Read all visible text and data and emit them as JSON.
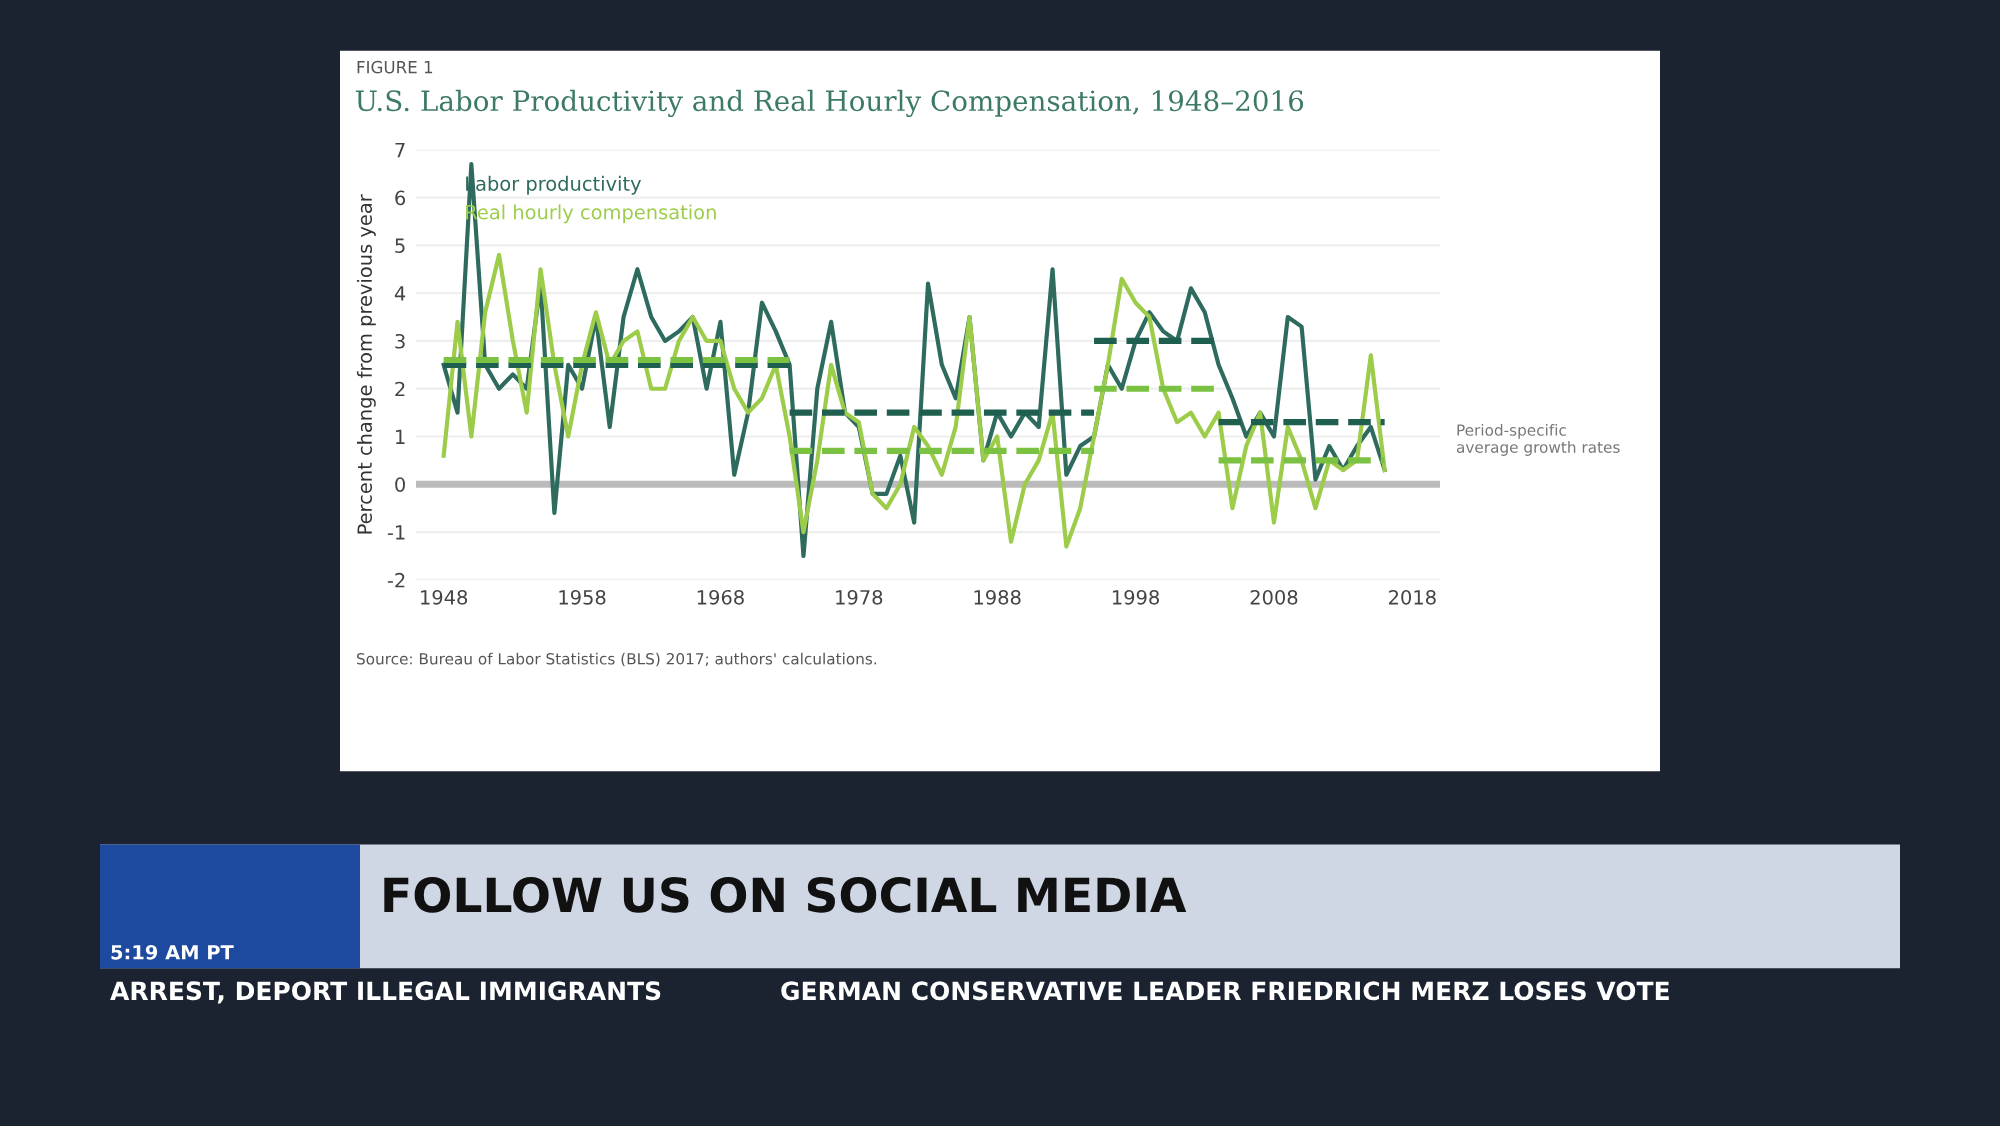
{
  "chart_data": {
    "type": "line",
    "title": "U.S. Labor Productivity and Real Hourly Compensation, 1948–2016",
    "ylabel": "Percent change from previous year",
    "x": [
      1948,
      1949,
      1950,
      1951,
      1952,
      1953,
      1954,
      1955,
      1956,
      1957,
      1958,
      1959,
      1960,
      1961,
      1962,
      1963,
      1964,
      1965,
      1966,
      1967,
      1968,
      1969,
      1970,
      1971,
      1972,
      1973,
      1974,
      1975,
      1976,
      1977,
      1978,
      1979,
      1980,
      1981,
      1982,
      1983,
      1984,
      1985,
      1986,
      1987,
      1988,
      1989,
      1990,
      1991,
      1992,
      1993,
      1994,
      1995,
      1996,
      1997,
      1998,
      1999,
      2000,
      2001,
      2002,
      2003,
      2004,
      2005,
      2006,
      2007,
      2008,
      2009,
      2010,
      2011,
      2012,
      2013,
      2014,
      2015,
      2016
    ],
    "series": [
      {
        "name": "Labor productivity",
        "color": "#2e6b5e",
        "values": [
          2.5,
          1.5,
          6.7,
          2.5,
          2.0,
          2.3,
          2.0,
          4.2,
          -0.6,
          2.5,
          2.0,
          3.5,
          1.2,
          3.5,
          4.5,
          3.5,
          3.0,
          3.2,
          3.5,
          2.0,
          3.4,
          0.2,
          1.5,
          3.8,
          3.2,
          2.5,
          -1.5,
          2.0,
          3.4,
          1.5,
          1.2,
          -0.2,
          -0.2,
          0.6,
          -0.8,
          4.2,
          2.5,
          1.8,
          3.5,
          0.5,
          1.5,
          1.0,
          1.5,
          1.2,
          4.5,
          0.2,
          0.8,
          1.0,
          2.5,
          2.0,
          3.0,
          3.6,
          3.2,
          3.0,
          4.1,
          3.6,
          2.5,
          1.8,
          1.0,
          1.5,
          1.0,
          3.5,
          3.3,
          0.1,
          0.8,
          0.3,
          0.8,
          1.2,
          0.3
        ]
      },
      {
        "name": "Real hourly compensation",
        "color": "#9ccc4a",
        "values": [
          0.6,
          3.4,
          1.0,
          3.6,
          4.8,
          3.0,
          1.5,
          4.5,
          2.5,
          1.0,
          2.5,
          3.6,
          2.5,
          3.0,
          3.2,
          2.0,
          2.0,
          3.0,
          3.5,
          3.0,
          3.0,
          2.0,
          1.5,
          1.8,
          2.5,
          1.0,
          -1.0,
          0.5,
          2.5,
          1.5,
          1.3,
          -0.2,
          -0.5,
          0.0,
          1.2,
          0.8,
          0.2,
          1.2,
          3.5,
          0.5,
          1.0,
          -1.2,
          0.0,
          0.5,
          1.5,
          -1.3,
          -0.5,
          1.0,
          2.5,
          4.3,
          3.8,
          3.5,
          2.0,
          1.3,
          1.5,
          1.0,
          1.5,
          -0.5,
          0.8,
          1.5,
          -0.8,
          1.2,
          0.5,
          -0.5,
          0.5,
          0.3,
          0.5,
          2.7,
          0.3
        ]
      },
      {
        "color": "#1f5f4f",
        "line_style": "dashed",
        "x": [
          1948,
          1973
        ],
        "values": [
          2.5,
          2.5
        ]
      },
      {
        "color": "#1f5f4f",
        "line_style": "dashed",
        "x": [
          1973,
          1995
        ],
        "values": [
          1.5,
          1.5
        ]
      },
      {
        "color": "#1f5f4f",
        "line_style": "dashed",
        "x": [
          1995,
          2004
        ],
        "values": [
          3.0,
          3.0
        ]
      },
      {
        "color": "#1f5f4f",
        "line_style": "dashed",
        "x": [
          2004,
          2016
        ],
        "values": [
          1.3,
          1.3
        ]
      },
      {
        "color": "#7cc242",
        "line_style": "dashed",
        "x": [
          1948,
          1973
        ],
        "values": [
          2.6,
          2.6
        ]
      },
      {
        "color": "#7cc242",
        "line_style": "dashed",
        "x": [
          1973,
          1995
        ],
        "values": [
          0.7,
          0.7
        ]
      },
      {
        "color": "#7cc242",
        "line_style": "dashed",
        "x": [
          1995,
          2004
        ],
        "values": [
          2.0,
          2.0
        ]
      },
      {
        "color": "#7cc242",
        "line_style": "dashed",
        "x": [
          2004,
          2016
        ],
        "values": [
          0.5,
          0.5
        ]
      }
    ],
    "xlim": [
      1946,
      2020
    ],
    "xticks": [
      1948,
      1958,
      1968,
      1978,
      1988,
      1998,
      2008,
      2018
    ],
    "ylim": [
      -2,
      7
    ],
    "yticks": [
      -2,
      -1,
      0,
      1,
      2,
      3,
      4,
      5,
      6,
      7
    ],
    "ref_lines": [
      {
        "axis": "y",
        "value": 0,
        "color": "#bbbbbb"
      }
    ],
    "grid": "y",
    "legend": "top left",
    "marker": "none",
    "line_style": "solid",
    "annotations": [
      "FIGURE 1",
      "Period-specific average growth rates",
      "Source: Bureau of Labor Statistics (BLS) 2017; authors' calculations.",
      "FOLLOW US ON SOCIAL MEDIA",
      "5:19 AM PT",
      "ARREST, DEPORT ILLEGAL IMMIGRANTS",
      "GERMAN CONSERVATIVE LEADER FRIEDRICH MERZ LOSES VOTE"
    ]
  }
}
